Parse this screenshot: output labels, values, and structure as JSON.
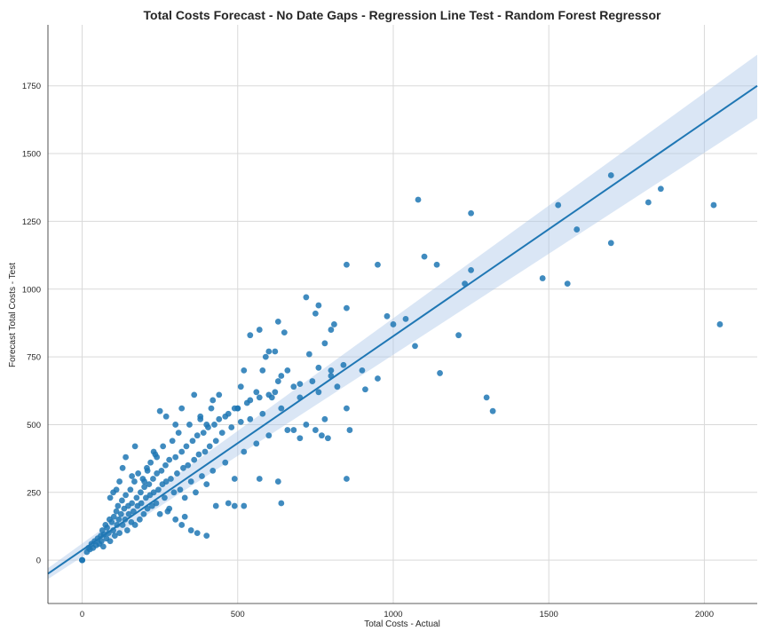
{
  "chart_data": {
    "type": "scatter",
    "title": "Total Costs Forecast - No Date Gaps - Regression Line Test - Random Forest Regressor",
    "xlabel": "Total Costs - Actual",
    "ylabel": "Forecast Total Costs - Test",
    "xlim": [
      -110,
      2170
    ],
    "ylim": [
      -160,
      1975
    ],
    "xticks": [
      0,
      500,
      1000,
      1500,
      2000
    ],
    "yticks": [
      0,
      250,
      500,
      750,
      1000,
      1250,
      1500,
      1750
    ],
    "grid": true,
    "point_color": "#1f77b4",
    "line_color": "#1f77b4",
    "ci_color": "#aec7e8",
    "regression": {
      "x": [
        -110,
        2170
      ],
      "y": [
        -50,
        1750
      ],
      "ci_lower": [
        -70,
        1630
      ],
      "ci_upper": [
        -30,
        1865
      ]
    },
    "points": [
      [
        0,
        0
      ],
      [
        0,
        0
      ],
      [
        0,
        0
      ],
      [
        0,
        0
      ],
      [
        15,
        30
      ],
      [
        20,
        45
      ],
      [
        25,
        40
      ],
      [
        30,
        60
      ],
      [
        35,
        45
      ],
      [
        40,
        70
      ],
      [
        45,
        55
      ],
      [
        50,
        80
      ],
      [
        55,
        60
      ],
      [
        60,
        90
      ],
      [
        62,
        70
      ],
      [
        65,
        110
      ],
      [
        68,
        50
      ],
      [
        70,
        95
      ],
      [
        75,
        130
      ],
      [
        78,
        80
      ],
      [
        80,
        120
      ],
      [
        85,
        100
      ],
      [
        88,
        150
      ],
      [
        90,
        70
      ],
      [
        95,
        140
      ],
      [
        100,
        110
      ],
      [
        102,
        160
      ],
      [
        105,
        90
      ],
      [
        110,
        180
      ],
      [
        112,
        130
      ],
      [
        115,
        200
      ],
      [
        118,
        150
      ],
      [
        120,
        100
      ],
      [
        125,
        170
      ],
      [
        128,
        220
      ],
      [
        130,
        130
      ],
      [
        135,
        190
      ],
      [
        138,
        150
      ],
      [
        140,
        240
      ],
      [
        145,
        110
      ],
      [
        148,
        200
      ],
      [
        150,
        170
      ],
      [
        155,
        260
      ],
      [
        158,
        140
      ],
      [
        160,
        210
      ],
      [
        165,
        180
      ],
      [
        168,
        290
      ],
      [
        170,
        130
      ],
      [
        175,
        230
      ],
      [
        178,
        200
      ],
      [
        180,
        320
      ],
      [
        185,
        150
      ],
      [
        188,
        250
      ],
      [
        190,
        210
      ],
      [
        195,
        300
      ],
      [
        198,
        170
      ],
      [
        200,
        270
      ],
      [
        205,
        230
      ],
      [
        208,
        340
      ],
      [
        210,
        190
      ],
      [
        215,
        280
      ],
      [
        218,
        240
      ],
      [
        220,
        360
      ],
      [
        225,
        200
      ],
      [
        228,
        300
      ],
      [
        230,
        250
      ],
      [
        235,
        390
      ],
      [
        238,
        210
      ],
      [
        240,
        320
      ],
      [
        245,
        260
      ],
      [
        250,
        170
      ],
      [
        255,
        330
      ],
      [
        258,
        280
      ],
      [
        260,
        420
      ],
      [
        265,
        230
      ],
      [
        268,
        350
      ],
      [
        270,
        290
      ],
      [
        275,
        180
      ],
      [
        280,
        370
      ],
      [
        285,
        300
      ],
      [
        290,
        440
      ],
      [
        295,
        250
      ],
      [
        300,
        380
      ],
      [
        305,
        320
      ],
      [
        310,
        470
      ],
      [
        315,
        260
      ],
      [
        320,
        400
      ],
      [
        325,
        340
      ],
      [
        330,
        230
      ],
      [
        335,
        420
      ],
      [
        340,
        350
      ],
      [
        345,
        500
      ],
      [
        350,
        290
      ],
      [
        355,
        440
      ],
      [
        360,
        370
      ],
      [
        365,
        250
      ],
      [
        370,
        460
      ],
      [
        375,
        390
      ],
      [
        380,
        530
      ],
      [
        385,
        310
      ],
      [
        390,
        470
      ],
      [
        395,
        400
      ],
      [
        400,
        280
      ],
      [
        405,
        490
      ],
      [
        410,
        420
      ],
      [
        415,
        560
      ],
      [
        420,
        330
      ],
      [
        425,
        500
      ],
      [
        430,
        440
      ],
      [
        440,
        520
      ],
      [
        450,
        470
      ],
      [
        460,
        360
      ],
      [
        470,
        540
      ],
      [
        480,
        490
      ],
      [
        490,
        300
      ],
      [
        500,
        560
      ],
      [
        510,
        510
      ],
      [
        520,
        400
      ],
      [
        530,
        580
      ],
      [
        540,
        520
      ],
      [
        560,
        430
      ],
      [
        570,
        600
      ],
      [
        580,
        540
      ],
      [
        600,
        460
      ],
      [
        620,
        620
      ],
      [
        640,
        560
      ],
      [
        660,
        480
      ],
      [
        680,
        640
      ],
      [
        700,
        600
      ],
      [
        720,
        500
      ],
      [
        740,
        660
      ],
      [
        760,
        620
      ],
      [
        780,
        520
      ],
      [
        800,
        680
      ],
      [
        820,
        640
      ],
      [
        250,
        550
      ],
      [
        270,
        530
      ],
      [
        300,
        500
      ],
      [
        320,
        560
      ],
      [
        360,
        610
      ],
      [
        380,
        520
      ],
      [
        400,
        500
      ],
      [
        420,
        590
      ],
      [
        440,
        610
      ],
      [
        460,
        530
      ],
      [
        490,
        560
      ],
      [
        500,
        560
      ],
      [
        510,
        640
      ],
      [
        520,
        700
      ],
      [
        540,
        590
      ],
      [
        560,
        620
      ],
      [
        580,
        700
      ],
      [
        600,
        610
      ],
      [
        620,
        770
      ],
      [
        640,
        680
      ],
      [
        660,
        700
      ],
      [
        720,
        970
      ],
      [
        750,
        910
      ],
      [
        760,
        940
      ],
      [
        780,
        800
      ],
      [
        800,
        850
      ],
      [
        810,
        870
      ],
      [
        850,
        930
      ],
      [
        540,
        830
      ],
      [
        570,
        850
      ],
      [
        600,
        770
      ],
      [
        630,
        880
      ],
      [
        650,
        840
      ],
      [
        590,
        750
      ],
      [
        610,
        600
      ],
      [
        630,
        660
      ],
      [
        700,
        650
      ],
      [
        730,
        760
      ],
      [
        760,
        710
      ],
      [
        800,
        700
      ],
      [
        840,
        720
      ],
      [
        130,
        340
      ],
      [
        140,
        380
      ],
      [
        160,
        310
      ],
      [
        170,
        420
      ],
      [
        200,
        290
      ],
      [
        210,
        330
      ],
      [
        230,
        400
      ],
      [
        240,
        380
      ],
      [
        110,
        260
      ],
      [
        120,
        290
      ],
      [
        100,
        250
      ],
      [
        90,
        230
      ],
      [
        280,
        190
      ],
      [
        300,
        150
      ],
      [
        320,
        130
      ],
      [
        330,
        160
      ],
      [
        350,
        110
      ],
      [
        370,
        100
      ],
      [
        400,
        90
      ],
      [
        430,
        200
      ],
      [
        470,
        210
      ],
      [
        490,
        200
      ],
      [
        520,
        200
      ],
      [
        570,
        300
      ],
      [
        630,
        290
      ],
      [
        640,
        210
      ],
      [
        680,
        480
      ],
      [
        700,
        450
      ],
      [
        750,
        480
      ],
      [
        770,
        460
      ],
      [
        790,
        450
      ],
      [
        850,
        560
      ],
      [
        850,
        300
      ],
      [
        860,
        480
      ],
      [
        900,
        700
      ],
      [
        910,
        630
      ],
      [
        950,
        670
      ],
      [
        980,
        900
      ],
      [
        1000,
        870
      ],
      [
        1040,
        890
      ],
      [
        1070,
        790
      ],
      [
        1080,
        1330
      ],
      [
        1100,
        1120
      ],
      [
        1140,
        1090
      ],
      [
        1150,
        690
      ],
      [
        1210,
        830
      ],
      [
        1230,
        1020
      ],
      [
        1250,
        1070
      ],
      [
        1250,
        1280
      ],
      [
        850,
        1090
      ],
      [
        950,
        1090
      ],
      [
        1300,
        600
      ],
      [
        1320,
        550
      ],
      [
        1480,
        1040
      ],
      [
        1530,
        1310
      ],
      [
        1560,
        1020
      ],
      [
        1590,
        1220
      ],
      [
        1700,
        1170
      ],
      [
        1700,
        1420
      ],
      [
        1820,
        1320
      ],
      [
        1860,
        1370
      ],
      [
        2030,
        1310
      ],
      [
        2050,
        870
      ]
    ]
  }
}
